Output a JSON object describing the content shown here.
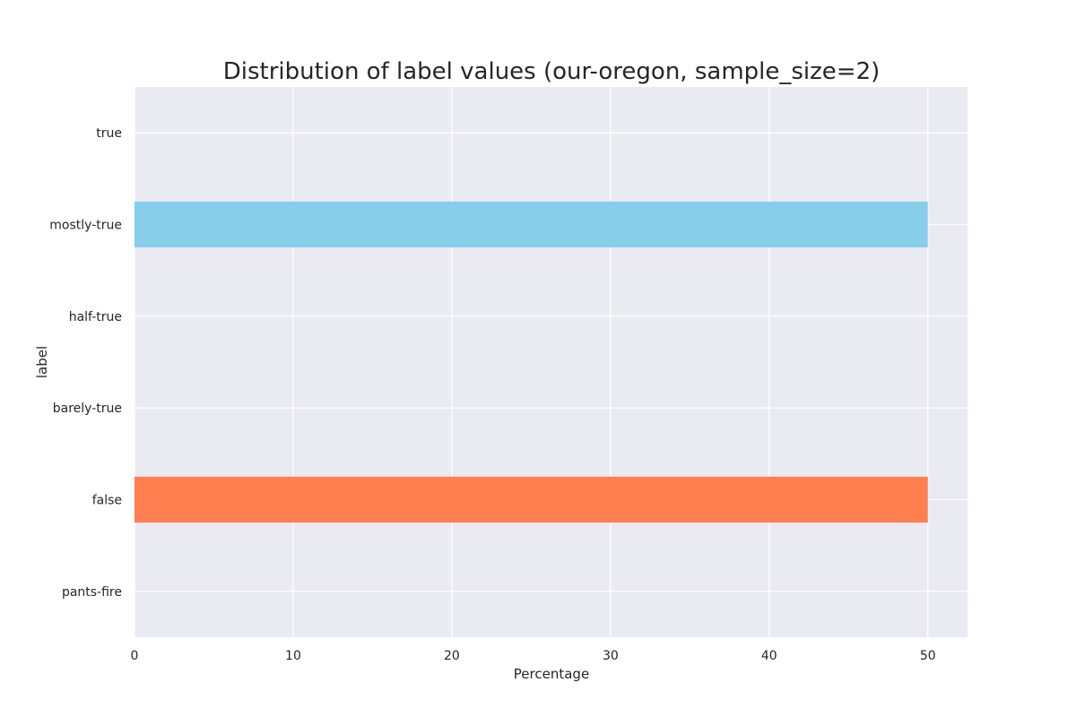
{
  "chart_data": {
    "type": "bar",
    "orientation": "horizontal",
    "title": "Distribution of label values (our-oregon, sample_size=2)",
    "xlabel": "Percentage",
    "ylabel": "label",
    "categories": [
      "true",
      "mostly-true",
      "half-true",
      "barely-true",
      "false",
      "pants-fire"
    ],
    "values": [
      0,
      50,
      0,
      0,
      50,
      0
    ],
    "xlim": [
      0,
      52.5
    ],
    "xticks": [
      0,
      10,
      20,
      30,
      40,
      50
    ],
    "colors": [
      "#87CEEB",
      "#87CEEB",
      "#87CEEB",
      "#87CEEB",
      "#FF7F50",
      "#87CEEB"
    ],
    "grid": true,
    "background": "#EAEAF2"
  }
}
